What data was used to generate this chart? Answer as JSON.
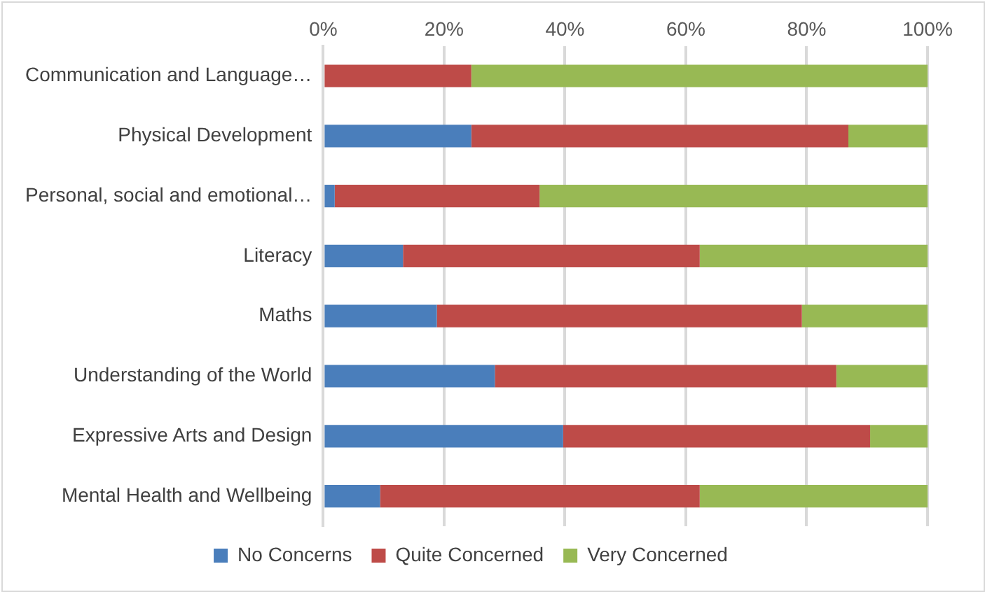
{
  "chart_data": {
    "type": "bar",
    "orientation": "horizontal",
    "stacked": true,
    "categories": [
      "Communication and Language…",
      "Physical Development",
      "Personal, social and emotional…",
      "Literacy",
      "Maths",
      "Understanding of the World",
      "Expressive Arts and Design",
      "Mental Health and Wellbeing"
    ],
    "series": [
      {
        "name": "No Concerns",
        "color": "#4a7ebb",
        "values": [
          0,
          24.5,
          1.9,
          13.2,
          18.8,
          28.4,
          39.7,
          9.4
        ]
      },
      {
        "name": "Quite Concerned",
        "color": "#be4b48",
        "values": [
          24.5,
          62.4,
          33.9,
          49.1,
          60.4,
          56.5,
          50.8,
          52.9
        ]
      },
      {
        "name": "Very Concerned",
        "color": "#98b954",
        "values": [
          75.5,
          13.1,
          64.2,
          37.7,
          20.8,
          15.1,
          9.5,
          37.7
        ]
      }
    ],
    "xlim": [
      0,
      100
    ],
    "xticks": [
      {
        "value": 0,
        "label": "0%"
      },
      {
        "value": 20,
        "label": "20%"
      },
      {
        "value": 40,
        "label": "40%"
      },
      {
        "value": 60,
        "label": "60%"
      },
      {
        "value": 80,
        "label": "80%"
      },
      {
        "value": 100,
        "label": "100%"
      }
    ],
    "grid": "x",
    "legend": "bottom"
  }
}
